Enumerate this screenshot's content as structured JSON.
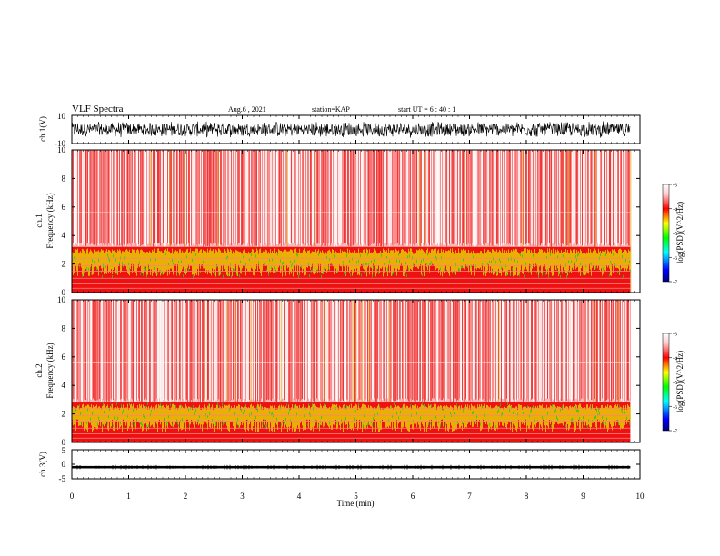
{
  "header": {
    "title": "VLF Spectra",
    "date": "Aug.6 , 2021",
    "station": "station=KAP",
    "start_ut": "start UT = 6 : 40 : 1"
  },
  "colors": {
    "spectro_red": "#ee1111",
    "spectro_yellow": "#e6e600",
    "spectro_green": "#22cc22",
    "wave": "#000000",
    "colorbar": [
      "#000080",
      "#0000ff",
      "#00ffff",
      "#00ff00",
      "#ffff00",
      "#ff0000",
      "#ffcccc",
      "#ffffff"
    ]
  },
  "chart_data": [
    {
      "type": "line",
      "name": "ch1-waveform",
      "ylabel": "ch.1(V)",
      "ylim": [
        -10,
        10
      ],
      "ytick_labels": [
        "-10",
        "10"
      ],
      "xlim": [
        0,
        10
      ],
      "description_values": {
        "x_end": 9.83,
        "amplitude_typical": 5
      }
    },
    {
      "type": "heatmap",
      "name": "ch1-spectrogram",
      "ylabel": "ch.1 Frequency (kHz)",
      "ylim": [
        0,
        10
      ],
      "ytick_labels": [
        "0",
        "2",
        "4",
        "6",
        "8",
        "10"
      ],
      "xlim": [
        0,
        10
      ],
      "x_end": 9.83,
      "yellow_band_top_khz": 3.2,
      "colorbar": {
        "label": "log(PSD)(V^2/Hz)",
        "range": [
          -7,
          -3
        ],
        "tick_labels": [
          "-3",
          "-4",
          "-5",
          "-6",
          "-7"
        ]
      }
    },
    {
      "type": "heatmap",
      "name": "ch2-spectrogram",
      "ylabel": "ch.2 Frequency (kHz)",
      "ylim": [
        0,
        10
      ],
      "ytick_labels": [
        "0",
        "2",
        "4",
        "6",
        "8",
        "10"
      ],
      "xlim": [
        0,
        10
      ],
      "x_end": 9.83,
      "yellow_band_top_khz": 2.8,
      "colorbar": {
        "label": "log(PSD)(V^2/Hz)",
        "range": [
          -7,
          -3
        ],
        "tick_labels": [
          "-3",
          "-4",
          "-5",
          "-6",
          "-7"
        ]
      }
    },
    {
      "type": "line",
      "name": "ch3-waveform",
      "ylabel": "ch.3(V)",
      "ylim": [
        -5,
        5
      ],
      "ytick_labels": [
        "-5",
        "0",
        "5"
      ],
      "xlim": [
        0,
        10
      ],
      "description_values": {
        "level": -1,
        "x_end": 9.83
      }
    }
  ],
  "xaxis": {
    "label": "Time (min)",
    "range": [
      0,
      10
    ],
    "tick_labels": [
      "0",
      "1",
      "2",
      "3",
      "4",
      "5",
      "6",
      "7",
      "8",
      "9",
      "10"
    ]
  }
}
